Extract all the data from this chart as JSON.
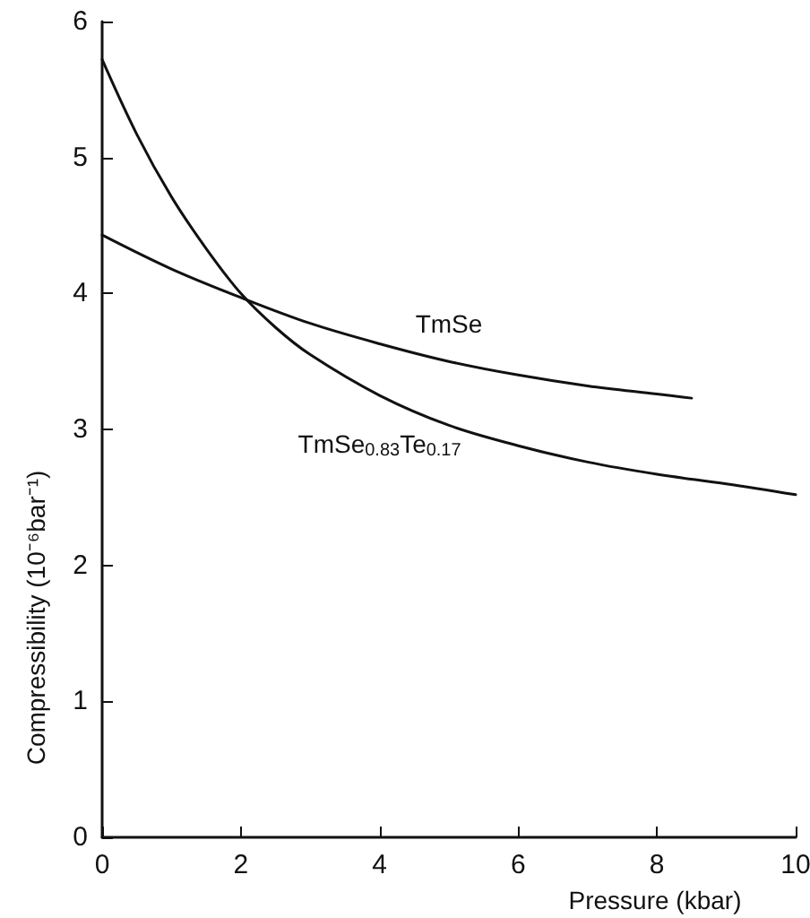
{
  "chart_data": {
    "type": "line",
    "xlabel": "Pressure (kbar)",
    "ylabel": "Compressibility (10⁻⁶bar⁻¹)",
    "x": [
      0,
      0.5,
      1,
      1.5,
      2,
      2.5,
      3,
      4,
      5,
      6,
      7,
      8,
      9,
      10
    ],
    "series": [
      {
        "name": "TmSe",
        "color": "#111111",
        "x": [
          0,
          1,
          2,
          3,
          4,
          5,
          6,
          7,
          8,
          8.5
        ],
        "values": [
          4.43,
          4.18,
          3.97,
          3.78,
          3.63,
          3.5,
          3.4,
          3.32,
          3.26,
          3.23
        ]
      },
      {
        "name": "TmSe$_{0.83}$Te$_{0.17}$",
        "color": "#111111",
        "values": [
          5.72,
          5.17,
          4.71,
          4.33,
          4.0,
          3.75,
          3.55,
          3.25,
          3.03,
          2.88,
          2.76,
          2.67,
          2.6,
          2.52
        ]
      }
    ],
    "xlim": [
      0,
      10
    ],
    "xticks": [
      0,
      2,
      4,
      6,
      8,
      10
    ],
    "ylim": [
      0,
      6
    ],
    "yticks": [
      0,
      1,
      2,
      3,
      4,
      5,
      6
    ],
    "grid": false,
    "legend": false,
    "marker": "none",
    "line_style": "solid"
  }
}
